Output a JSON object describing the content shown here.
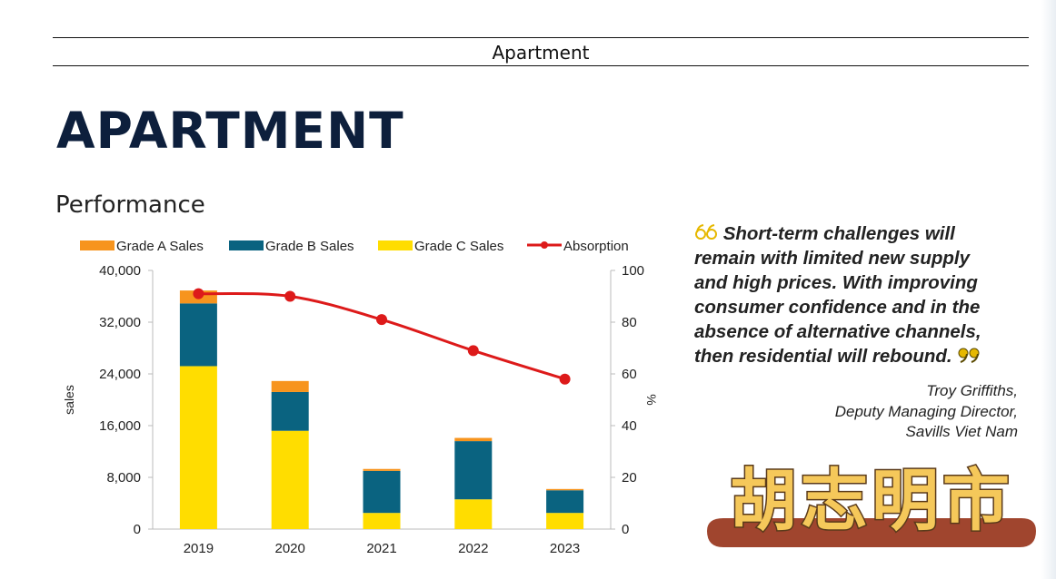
{
  "header": {
    "section_label": "Apartment"
  },
  "page": {
    "title": "APARTMENT",
    "subtitle": "Performance"
  },
  "chart_data": {
    "type": "bar",
    "stacked": true,
    "categories": [
      "2019",
      "2020",
      "2021",
      "2022",
      "2023"
    ],
    "series": [
      {
        "name": "Grade A Sales",
        "color": "#f7941d",
        "values": [
          2000,
          1700,
          300,
          500,
          200
        ]
      },
      {
        "name": "Grade B Sales",
        "color": "#0a6380",
        "values": [
          9700,
          6000,
          6500,
          9000,
          3500
        ]
      },
      {
        "name": "Grade C Sales",
        "color": "#ffdd00",
        "values": [
          25200,
          15200,
          2500,
          4600,
          2500
        ]
      }
    ],
    "line_series": {
      "name": "Absorption",
      "color": "#dd1a1a",
      "axis": "right",
      "values": [
        91,
        90,
        81,
        69,
        58
      ]
    },
    "ylabel": "sales",
    "ylabel_right": "%",
    "ylim": [
      0,
      40000
    ],
    "ylim_right": [
      0,
      100
    ],
    "yticks": [
      "0",
      "8,000",
      "16,000",
      "24,000",
      "32,000",
      "40,000"
    ],
    "yticks_right": [
      "0",
      "20",
      "40",
      "60",
      "80",
      "100"
    ],
    "legend_position": "top",
    "grid": false
  },
  "quote": {
    "text": "Short-term challenges will remain with limited new supply and high prices. With improving consumer confidence and in the absence of alternative channels, then residential will rebound.",
    "lines": [
      "Short-term challenges will",
      "remain with limited new supply",
      "and high prices. With improving",
      "consumer confidence and in the",
      "absence of alternative channels,",
      "then residential will rebound."
    ],
    "open_mark": "66",
    "close_mark": "99",
    "accent_color": "#e6b800"
  },
  "attribution": {
    "name": "Troy Griffiths,",
    "role": "Deputy Managing Director,",
    "company": "Savills Viet Nam"
  },
  "watermark": {
    "text": "胡志明市",
    "color": "#f5c85a",
    "ribbon_color": "#a0452e"
  }
}
